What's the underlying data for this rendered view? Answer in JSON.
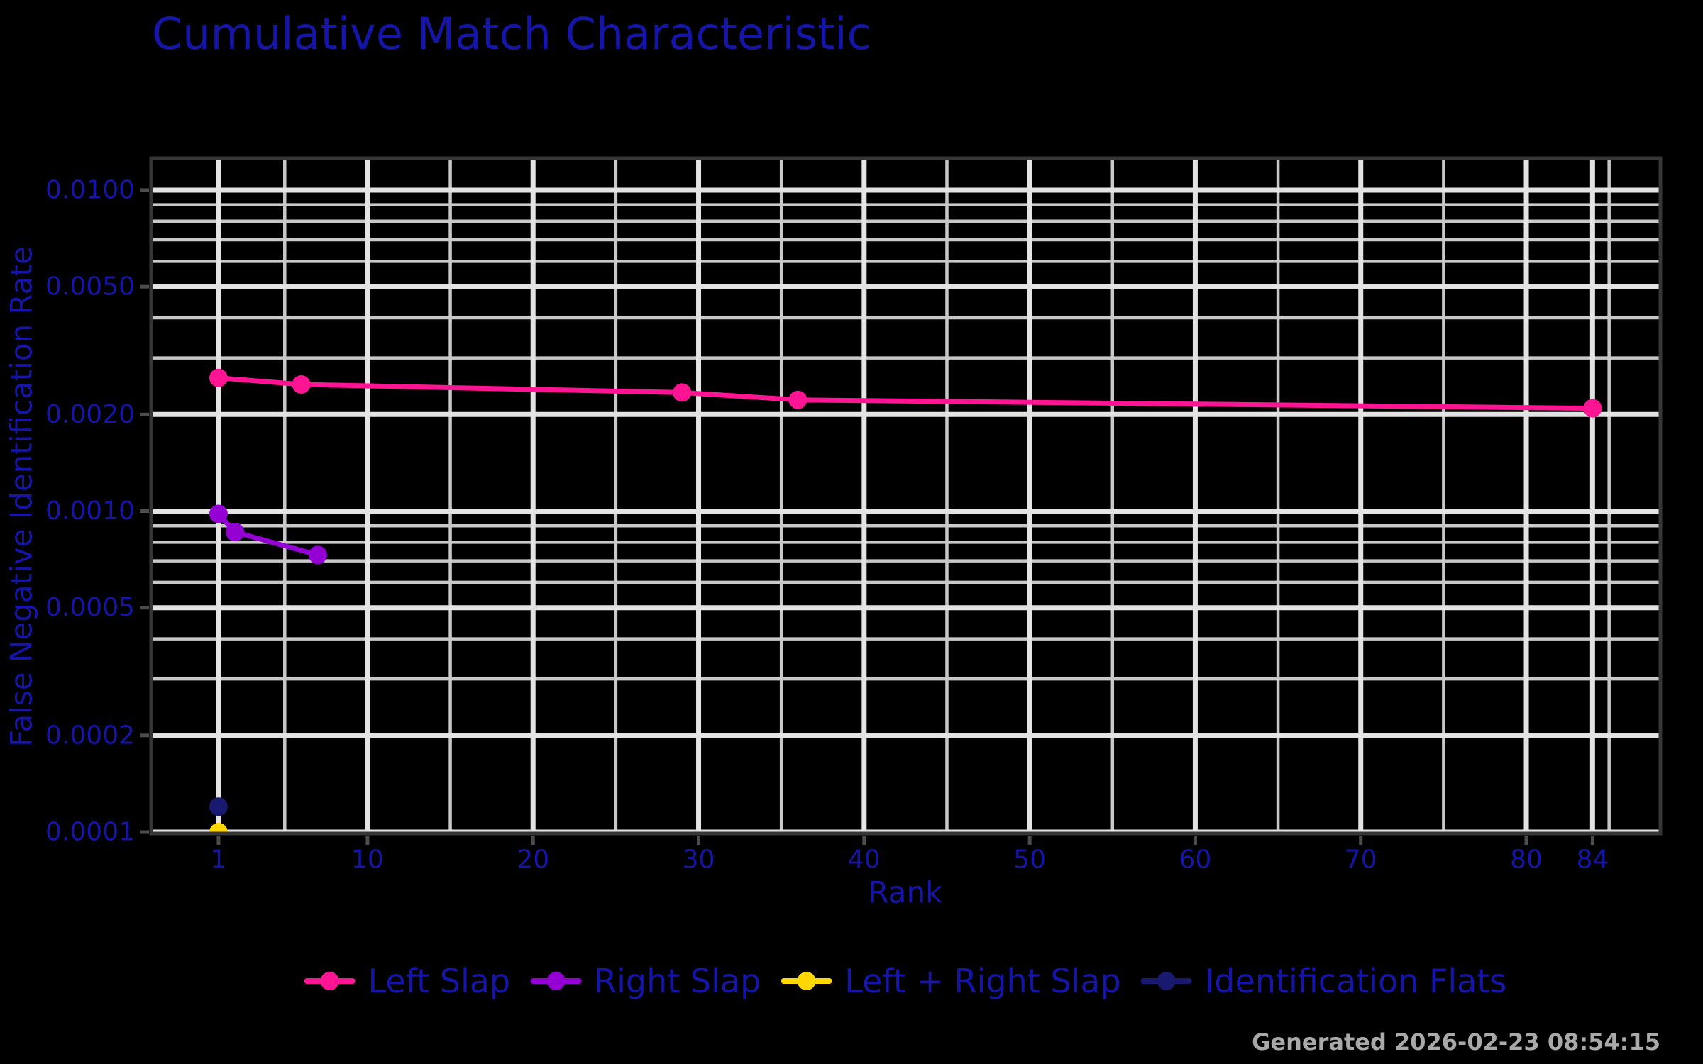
{
  "chart_data": {
    "type": "line",
    "title": "Cumulative Match Characteristic",
    "xlabel": "Rank",
    "ylabel": "False Negative Identification Rate",
    "x_scale": "linear",
    "y_scale": "log",
    "grid": true,
    "legend_position": "bottom-center",
    "xlim": [
      -3.07,
      88.1
    ],
    "ylim": [
      9.9e-05,
      0.01257
    ],
    "x_ticks": [
      {
        "value": 1,
        "label": "1"
      },
      {
        "value": 10,
        "label": "10"
      },
      {
        "value": 20,
        "label": "20"
      },
      {
        "value": 30,
        "label": "30"
      },
      {
        "value": 40,
        "label": "40"
      },
      {
        "value": 50,
        "label": "50"
      },
      {
        "value": 60,
        "label": "60"
      },
      {
        "value": 70,
        "label": "70"
      },
      {
        "value": 80,
        "label": "80"
      },
      {
        "value": 84,
        "label": "84"
      }
    ],
    "x_minor_gridlines": [
      5,
      15,
      25,
      35,
      45,
      55,
      65,
      75,
      85
    ],
    "y_ticks": [
      {
        "value": 0.01,
        "label": "0.0100"
      },
      {
        "value": 0.005,
        "label": "0.0050"
      },
      {
        "value": 0.002,
        "label": "0.0020"
      },
      {
        "value": 0.001,
        "label": "0.0010"
      },
      {
        "value": 0.0005,
        "label": "0.0005"
      },
      {
        "value": 0.0002,
        "label": "0.0002"
      },
      {
        "value": 0.0001,
        "label": "0.0001"
      }
    ],
    "y_minor_gridlines": [
      0.009,
      0.008,
      0.007,
      0.006,
      0.004,
      0.003,
      0.0009,
      0.0008,
      0.0007,
      0.0006,
      0.0004,
      0.0003
    ],
    "series": [
      {
        "name": "Left Slap",
        "color": "#FF1493",
        "points": [
          [
            1,
            0.0026
          ],
          [
            6,
            0.00248
          ],
          [
            29,
            0.00234
          ],
          [
            36,
            0.00222
          ],
          [
            84,
            0.00209
          ]
        ]
      },
      {
        "name": "Right Slap",
        "color": "#9400D3",
        "points": [
          [
            1,
            0.00098
          ],
          [
            2,
            0.00086
          ],
          [
            7,
            0.00073
          ]
        ]
      },
      {
        "name": "Left + Right Slap",
        "color": "#FFD700",
        "points": [
          [
            1,
            0.0001
          ]
        ]
      },
      {
        "name": "Identification Flats",
        "color": "#191970",
        "points": [
          [
            1,
            0.00012
          ]
        ]
      }
    ]
  },
  "footer": {
    "text": "Generated 2026-02-23 08:54:15"
  },
  "colors": {
    "background": "#000000",
    "text_blue": "#1515A8",
    "grid_major": "#E3E3E3",
    "grid_minor": "#C8C8C8",
    "axis_border": "#363636",
    "tick_mark": "#4D4D4D",
    "footer_gray": "#A9A9A9"
  }
}
